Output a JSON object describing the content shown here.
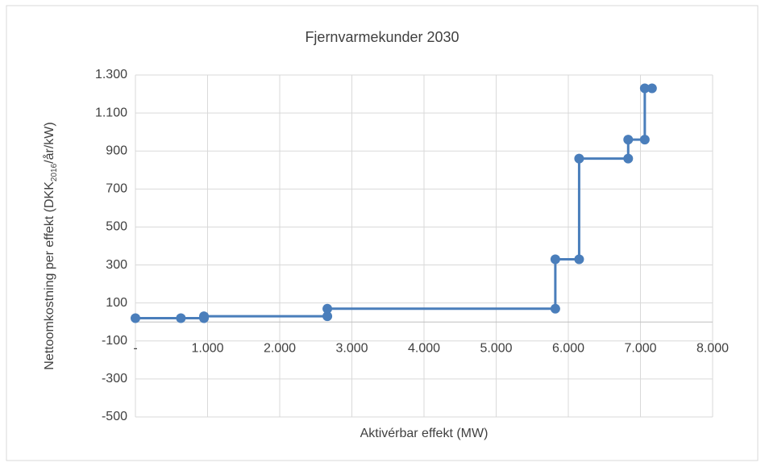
{
  "chart_data": {
    "type": "line",
    "title": "Fjernvarmekunder 2030",
    "xlabel": "Aktivérbar effekt (MW)",
    "ylabel": [
      "Nettoomkostning per effekt (DKK",
      "2016",
      "/år/kW)"
    ],
    "x": [
      0,
      630,
      950,
      950,
      2660,
      2660,
      5820,
      5820,
      6150,
      6150,
      6830,
      6830,
      7060,
      7060,
      7160
    ],
    "series": [
      {
        "color": "#4a7ebb",
        "values": [
          20,
          20,
          20,
          30,
          30,
          70,
          70,
          330,
          330,
          860,
          860,
          960,
          960,
          1230,
          1230
        ]
      }
    ],
    "xlim": [
      0,
      8000
    ],
    "xticks": [
      {
        "value": 0,
        "label": "-"
      },
      {
        "value": 1000,
        "label": "1.000"
      },
      {
        "value": 2000,
        "label": "2.000"
      },
      {
        "value": 3000,
        "label": "3.000"
      },
      {
        "value": 4000,
        "label": "4.000"
      },
      {
        "value": 5000,
        "label": "5.000"
      },
      {
        "value": 6000,
        "label": "6.000"
      },
      {
        "value": 7000,
        "label": "7.000"
      },
      {
        "value": 8000,
        "label": "8.000"
      }
    ],
    "ylim": [
      -500,
      1300
    ],
    "yticks": [
      -500,
      -300,
      -100,
      100,
      300,
      500,
      700,
      900,
      {
        "value": 1100,
        "label": "1.100"
      },
      {
        "value": 1300,
        "label": "1.300"
      }
    ],
    "grid": true
  }
}
